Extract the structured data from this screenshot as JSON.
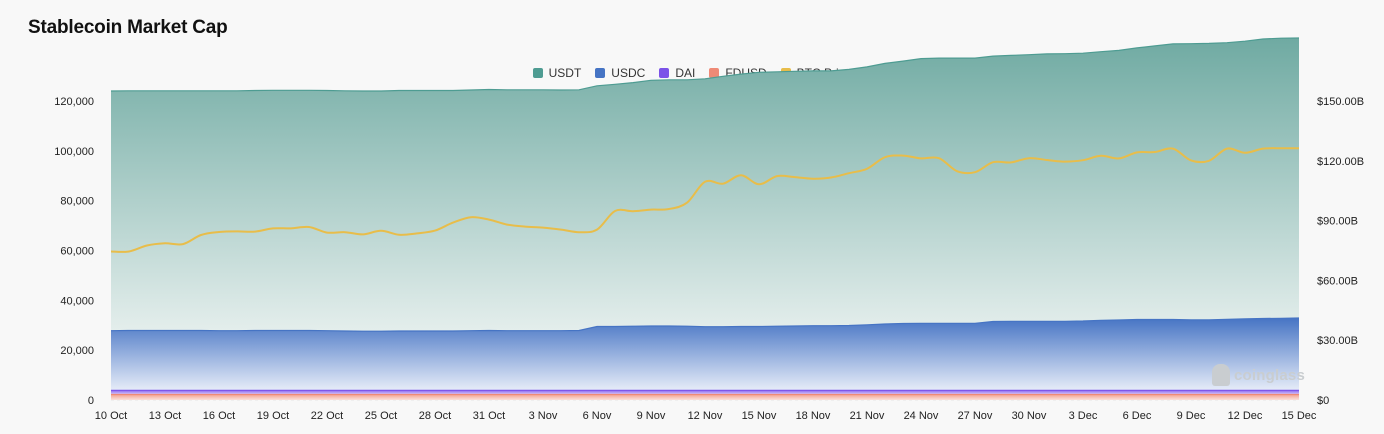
{
  "title": "Stablecoin Market Cap",
  "watermark": "coinglass",
  "colors": {
    "USDT": "#4e9c92",
    "USDC": "#4674c4",
    "DAI": "#7b52e8",
    "FDUSD": "#ef8a76",
    "BTC Price": "#e8bd4a"
  },
  "chart_data": {
    "type": "area",
    "x": [
      "10 Oct",
      "11 Oct",
      "12 Oct",
      "13 Oct",
      "14 Oct",
      "15 Oct",
      "16 Oct",
      "17 Oct",
      "18 Oct",
      "19 Oct",
      "20 Oct",
      "21 Oct",
      "22 Oct",
      "23 Oct",
      "24 Oct",
      "25 Oct",
      "26 Oct",
      "27 Oct",
      "28 Oct",
      "29 Oct",
      "30 Oct",
      "31 Oct",
      "1 Nov",
      "2 Nov",
      "3 Nov",
      "4 Nov",
      "5 Nov",
      "6 Nov",
      "7 Nov",
      "8 Nov",
      "9 Nov",
      "10 Nov",
      "11 Nov",
      "12 Nov",
      "13 Nov",
      "14 Nov",
      "15 Nov",
      "16 Nov",
      "17 Nov",
      "18 Nov",
      "19 Nov",
      "20 Nov",
      "21 Nov",
      "22 Nov",
      "23 Nov",
      "24 Nov",
      "25 Nov",
      "26 Nov",
      "27 Nov",
      "28 Nov",
      "29 Nov",
      "30 Nov",
      "1 Dec",
      "2 Dec",
      "3 Dec",
      "4 Dec",
      "5 Dec",
      "6 Dec",
      "7 Dec",
      "8 Dec",
      "9 Dec",
      "10 Dec",
      "11 Dec",
      "12 Dec",
      "13 Dec",
      "14 Dec",
      "15 Dec"
    ],
    "x_tick_labels": [
      "10 Oct",
      "13 Oct",
      "16 Oct",
      "19 Oct",
      "22 Oct",
      "25 Oct",
      "28 Oct",
      "31 Oct",
      "3 Nov",
      "6 Nov",
      "9 Nov",
      "12 Nov",
      "15 Nov",
      "18 Nov",
      "21 Nov",
      "24 Nov",
      "27 Nov",
      "30 Nov",
      "3 Dec",
      "6 Dec",
      "9 Dec",
      "12 Dec",
      "15 Dec"
    ],
    "y_left": {
      "ylim": [
        0,
        120000
      ],
      "ticks": [
        0,
        20000,
        40000,
        60000,
        80000,
        100000,
        120000
      ],
      "tick_labels": [
        "0",
        "20,000",
        "40,000",
        "60,000",
        "80,000",
        "100,000",
        "120,000"
      ]
    },
    "y_right": {
      "ylim": [
        0,
        150
      ],
      "ticks": [
        0,
        30,
        60,
        90,
        120,
        150
      ],
      "tick_labels": [
        "$0",
        "$30.00B",
        "$60.00B",
        "$90.00B",
        "$120.00B",
        "$150.00B"
      ]
    },
    "legend_position": "top-center",
    "grid": true,
    "series": [
      {
        "name": "USDT",
        "axis": "left",
        "stacked": true,
        "values": [
          96200,
          96200,
          96200,
          96200,
          96200,
          96200,
          96300,
          96300,
          96300,
          96400,
          96400,
          96400,
          96400,
          96400,
          96400,
          96400,
          96500,
          96500,
          96500,
          96500,
          96600,
          96700,
          96700,
          96700,
          96700,
          96600,
          96600,
          96600,
          97200,
          97800,
          98600,
          98800,
          98900,
          99500,
          100500,
          101300,
          102000,
          102100,
          102200,
          102300,
          102300,
          102800,
          103500,
          104600,
          105300,
          106200,
          106400,
          106400,
          106400,
          106500,
          106700,
          107000,
          107300,
          107400,
          107500,
          107800,
          108200,
          109000,
          109800,
          110600,
          110800,
          110900,
          111000,
          111400,
          112200,
          112400,
          112400
        ]
      },
      {
        "name": "USDC",
        "axis": "left",
        "stacked": true,
        "values": [
          23900,
          24000,
          24000,
          24000,
          24000,
          24000,
          23900,
          23900,
          24000,
          24000,
          24000,
          24000,
          23900,
          23800,
          23700,
          23700,
          23800,
          23800,
          23800,
          23800,
          23900,
          24000,
          23900,
          23900,
          23900,
          23900,
          24000,
          25600,
          25600,
          25700,
          25800,
          25800,
          25700,
          25500,
          25500,
          25600,
          25600,
          25700,
          25800,
          25900,
          25900,
          26000,
          26300,
          26600,
          26800,
          26900,
          26900,
          26900,
          26900,
          27600,
          27700,
          27700,
          27700,
          27700,
          27800,
          28100,
          28200,
          28400,
          28400,
          28400,
          28300,
          28300,
          28500,
          28700,
          28800,
          28900,
          29000
        ]
      },
      {
        "name": "DAI",
        "axis": "left",
        "stacked": true,
        "values": [
          1700,
          1700,
          1700,
          1700,
          1700,
          1700,
          1700,
          1700,
          1700,
          1700,
          1700,
          1700,
          1700,
          1700,
          1700,
          1700,
          1700,
          1700,
          1700,
          1700,
          1700,
          1700,
          1700,
          1700,
          1700,
          1700,
          1700,
          1700,
          1700,
          1700,
          1700,
          1700,
          1700,
          1700,
          1700,
          1700,
          1700,
          1700,
          1700,
          1700,
          1700,
          1700,
          1700,
          1700,
          1700,
          1700,
          1700,
          1700,
          1700,
          1700,
          1700,
          1700,
          1700,
          1700,
          1700,
          1700,
          1700,
          1700,
          1700,
          1700,
          1700,
          1700,
          1700,
          1700,
          1700,
          1700,
          1700
        ]
      },
      {
        "name": "FDUSD",
        "axis": "left",
        "stacked": true,
        "values": [
          2200,
          2200,
          2200,
          2200,
          2200,
          2200,
          2200,
          2200,
          2200,
          2200,
          2200,
          2200,
          2200,
          2200,
          2200,
          2200,
          2200,
          2200,
          2200,
          2200,
          2200,
          2200,
          2200,
          2200,
          2200,
          2200,
          2200,
          2200,
          2200,
          2200,
          2200,
          2200,
          2200,
          2200,
          2200,
          2200,
          2200,
          2200,
          2200,
          2200,
          2200,
          2200,
          2200,
          2200,
          2200,
          2200,
          2200,
          2200,
          2200,
          2200,
          2200,
          2200,
          2200,
          2200,
          2200,
          2200,
          2200,
          2200,
          2200,
          2200,
          2200,
          2200,
          2200,
          2200,
          2200,
          2200,
          2200
        ]
      },
      {
        "name": "BTC Price",
        "axis": "right",
        "type": "line",
        "values": [
          74.5,
          74.5,
          77.5,
          78.6,
          78.2,
          82.8,
          84.3,
          84.6,
          84.5,
          86.1,
          86.1,
          86.8,
          84.0,
          84.2,
          83.1,
          84.9,
          82.9,
          83.6,
          85.0,
          89.0,
          91.7,
          90.5,
          88.0,
          87.0,
          86.5,
          85.5,
          84.2,
          85.5,
          94.8,
          94.7,
          95.5,
          95.8,
          99.0,
          109.5,
          108.5,
          112.8,
          108.2,
          112.3,
          111.8,
          111.0,
          111.6,
          113.8,
          116.0,
          121.8,
          122.6,
          121.2,
          121.3,
          114.8,
          114.3,
          119.3,
          119.2,
          121.3,
          120.4,
          119.6,
          120.3,
          122.5,
          121.2,
          124.2,
          124.4,
          126.1,
          120.2,
          120.0,
          126.1,
          124.0,
          126.1,
          126.3,
          126.3
        ]
      }
    ]
  }
}
